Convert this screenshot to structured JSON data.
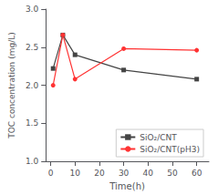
{
  "chart_data": {
    "type": "line",
    "x_label": "Time(h)",
    "y_label": "TOC concentration (mg/L)",
    "series": [
      {
        "name": "SiO₂/CNT",
        "color": "#444444",
        "marker": "square",
        "line_style": "solid",
        "x": [
          1,
          5,
          10,
          30,
          60
        ],
        "values": [
          2.22,
          2.66,
          2.4,
          2.2,
          2.08
        ]
      },
      {
        "name": "SiO₂/CNT(pH3)",
        "color": "#ff3333",
        "marker": "circle",
        "line_style": "solid",
        "x": [
          1,
          5,
          10,
          30,
          60
        ],
        "values": [
          2.0,
          2.66,
          2.08,
          2.48,
          2.46
        ]
      }
    ],
    "xlim": [
      -2,
      65
    ],
    "ylim": [
      1.0,
      3.0
    ],
    "xticks": [
      0,
      10,
      20,
      30,
      40,
      50,
      60
    ],
    "yticks": [
      {
        "value": 1.0,
        "label": "1.0"
      },
      {
        "value": 1.5,
        "label": "1.5"
      },
      {
        "value": 2.0,
        "label": "2.0"
      },
      {
        "value": 2.5,
        "label": "2.5"
      },
      {
        "value": 3.0,
        "label": "3.0"
      }
    ],
    "grid": false,
    "legend": "lower right"
  }
}
